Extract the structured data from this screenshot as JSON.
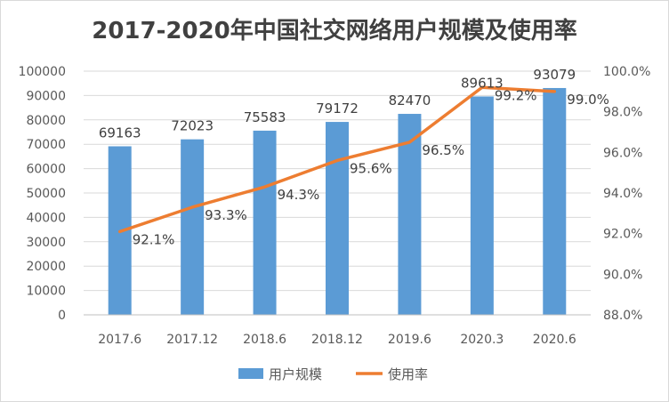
{
  "chart_data": {
    "type": "bar",
    "title": "2017-2020年中国社交网络用户规模及使用率",
    "categories": [
      "2017.6",
      "2017.12",
      "2018.6",
      "2018.12",
      "2019.6",
      "2020.3",
      "2020.6"
    ],
    "series": [
      {
        "name": "用户规模",
        "type": "bar",
        "axis": "left",
        "values": [
          69163,
          72023,
          75583,
          79172,
          82470,
          89613,
          93079
        ],
        "labels": [
          "69163",
          "72023",
          "75583",
          "79172",
          "82470",
          "89613",
          "93079"
        ],
        "color": "#5b9bd5"
      },
      {
        "name": "使用率",
        "type": "line",
        "axis": "right",
        "values": [
          92.1,
          93.3,
          94.3,
          95.6,
          96.5,
          99.2,
          99.0
        ],
        "labels": [
          "92.1%",
          "93.3%",
          "94.3%",
          "95.6%",
          "96.5%",
          "99.2%",
          "99.0%"
        ],
        "color": "#ed7d31"
      }
    ],
    "y_left": {
      "range": [
        0,
        100000
      ],
      "ticks": [
        "0",
        "10000",
        "20000",
        "30000",
        "40000",
        "50000",
        "60000",
        "70000",
        "80000",
        "90000",
        "100000"
      ]
    },
    "y_right": {
      "range": [
        88,
        100
      ],
      "ticks": [
        "88.0%",
        "90.0%",
        "92.0%",
        "94.0%",
        "96.0%",
        "98.0%",
        "100.0%"
      ]
    },
    "grid": true,
    "legend": "bottom"
  }
}
